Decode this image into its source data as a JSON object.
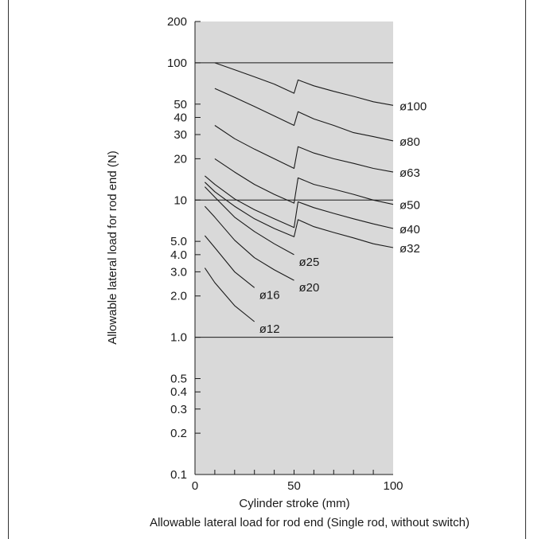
{
  "chart_data": {
    "type": "line",
    "title": "Allowable lateral load for rod end (Single rod, without switch)",
    "xlabel": "Cylinder stroke (mm)",
    "ylabel": "Allowable lateral load for rod end (N)",
    "xlim": [
      0,
      100
    ],
    "ylim": [
      0.1,
      200
    ],
    "y_scale": "log",
    "x_ticks": [
      0,
      50,
      100
    ],
    "x_tick_labels": [
      "0",
      "50",
      "100"
    ],
    "y_ticks": [
      0.1,
      0.2,
      0.3,
      0.4,
      0.5,
      1.0,
      2.0,
      3.0,
      4.0,
      5.0,
      10,
      20,
      30,
      40,
      50,
      100,
      200
    ],
    "y_tick_labels": [
      "0.1",
      "0.2",
      "0.3",
      "0.4",
      "0.5",
      "1.0",
      "2.0",
      "3.0",
      "4.0",
      "5.0",
      "10",
      "20",
      "30",
      "40",
      "50",
      "100",
      "200"
    ],
    "reference_lines_y": [
      1.0,
      10,
      100
    ],
    "plot_background": "#d9d9d9",
    "series": [
      {
        "name": "ø100",
        "x": [
          10,
          20,
          30,
          40,
          50,
          50,
          52,
          60,
          70,
          80,
          90,
          100
        ],
        "y": [
          100,
          89,
          79,
          70,
          60,
          60,
          75,
          68,
          62,
          57,
          52,
          49
        ]
      },
      {
        "name": "ø80",
        "x": [
          10,
          20,
          30,
          40,
          50,
          50,
          52,
          60,
          70,
          80,
          90,
          100
        ],
        "y": [
          65,
          56,
          48,
          41,
          35,
          35,
          44,
          39,
          35,
          31,
          29,
          27
        ]
      },
      {
        "name": "ø63",
        "x": [
          10,
          20,
          30,
          40,
          50,
          50,
          52,
          60,
          70,
          80,
          90,
          100
        ],
        "y": [
          35,
          28,
          23.5,
          20,
          17,
          17,
          24.5,
          22,
          20,
          18.5,
          17,
          16
        ]
      },
      {
        "name": "ø50",
        "x": [
          10,
          20,
          30,
          40,
          50,
          50,
          52,
          60,
          70,
          80,
          90,
          100
        ],
        "y": [
          20,
          16,
          13,
          11,
          9.5,
          9.5,
          14.5,
          13,
          12,
          11,
          10,
          9.3
        ]
      },
      {
        "name": "ø40",
        "x": [
          5,
          10,
          20,
          30,
          40,
          50,
          50,
          52,
          60,
          70,
          80,
          90,
          100
        ],
        "y": [
          15,
          13,
          10.2,
          8.5,
          7.3,
          6.3,
          6.3,
          9.7,
          8.8,
          8,
          7.3,
          6.7,
          6.2
        ]
      },
      {
        "name": "ø32",
        "x": [
          5,
          10,
          20,
          30,
          40,
          50,
          50,
          52,
          60,
          70,
          80,
          90,
          100
        ],
        "y": [
          13.5,
          11.5,
          9,
          7.3,
          6.2,
          5.4,
          5.4,
          7.2,
          6.4,
          5.8,
          5.3,
          4.8,
          4.5
        ]
      },
      {
        "name": "ø25",
        "x": [
          5,
          10,
          20,
          30,
          40,
          50
        ],
        "y": [
          12.5,
          10.5,
          7.5,
          5.9,
          4.8,
          4
        ]
      },
      {
        "name": "ø20",
        "x": [
          5,
          10,
          20,
          30,
          40,
          50
        ],
        "y": [
          9,
          7.5,
          5.1,
          3.8,
          3.1,
          2.6
        ]
      },
      {
        "name": "ø16",
        "x": [
          5,
          10,
          20,
          30
        ],
        "y": [
          5.5,
          4.5,
          3,
          2.3
        ]
      },
      {
        "name": "ø12",
        "x": [
          5,
          10,
          20,
          30
        ],
        "y": [
          3.2,
          2.5,
          1.7,
          1.3
        ]
      }
    ]
  }
}
